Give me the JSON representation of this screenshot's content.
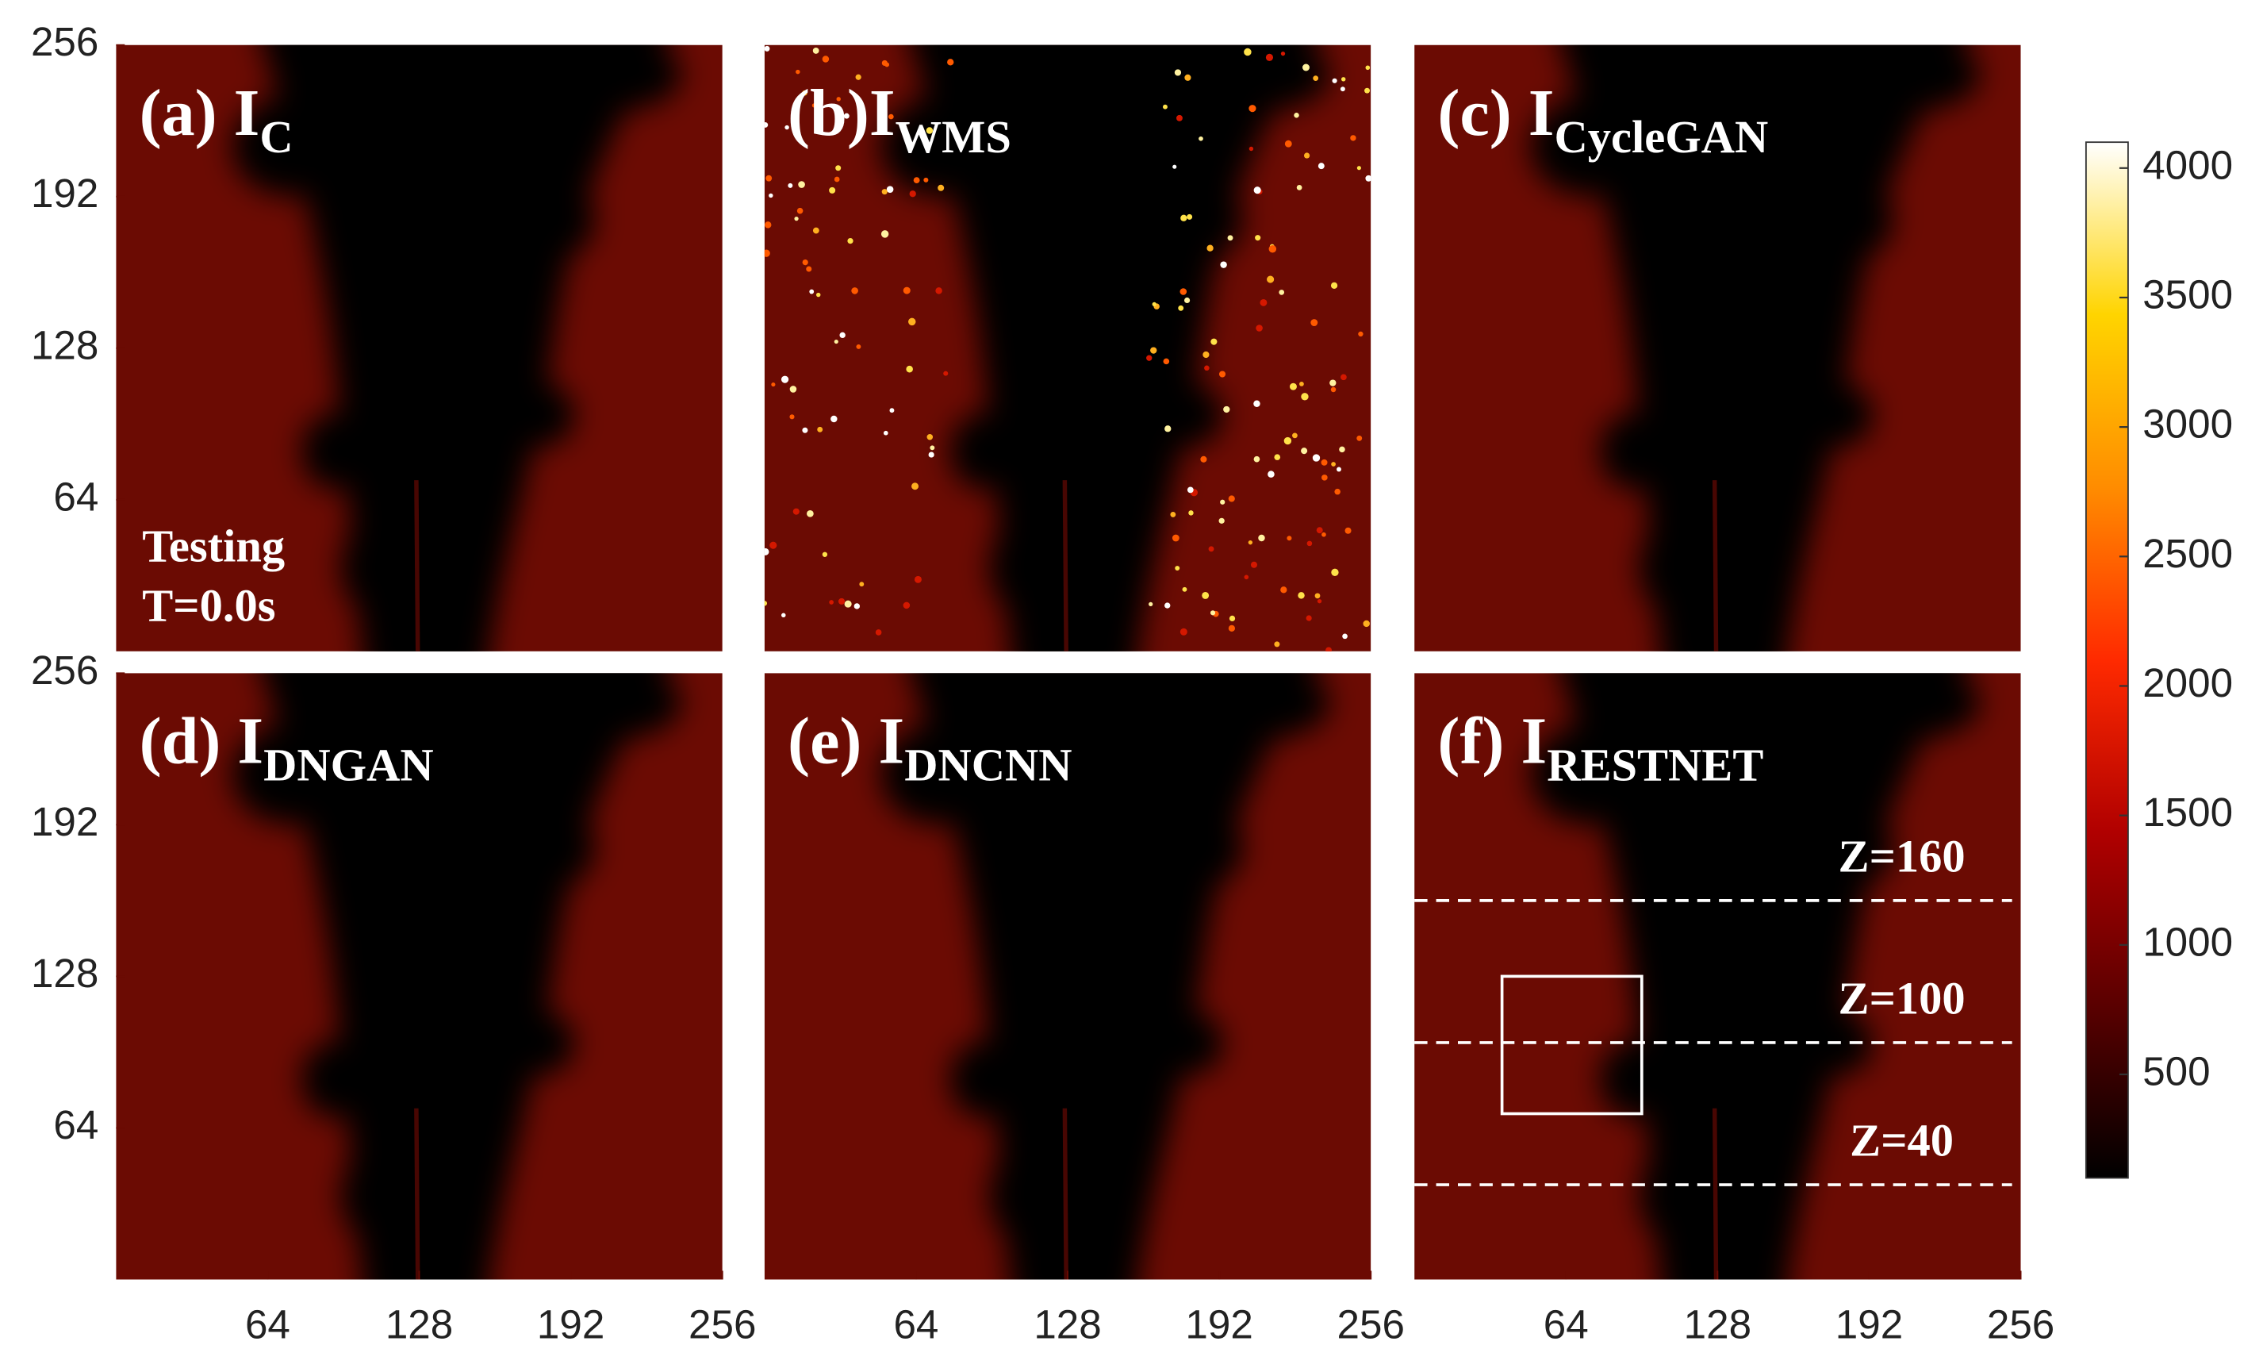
{
  "chart_data": {
    "type": "heatmap",
    "xlim": [
      0,
      256
    ],
    "ylim": [
      0,
      256
    ],
    "xticks": [
      64,
      128,
      192,
      256
    ],
    "yticks": [
      64,
      128,
      192,
      256
    ],
    "background_color": "#6b0b03",
    "panels": [
      {
        "title": "(a) I",
        "title_sub": "C",
        "annotations": [
          "Testing",
          "T=0.0s"
        ]
      },
      {
        "title": "(b)I",
        "title_sub": "WMS",
        "noise": true
      },
      {
        "title": "(c) I",
        "title_sub": "CycleGAN"
      },
      {
        "title": "(d) I",
        "title_sub": "DNGAN"
      },
      {
        "title": "(e) I",
        "title_sub": "DNCNN"
      },
      {
        "title": "(f) I",
        "title_sub": "RESTNET",
        "lines": [
          {
            "label": "Z=160",
            "z": 160
          },
          {
            "label": "Z=100",
            "z": 100
          },
          {
            "label": "Z=40",
            "z": 40
          }
        ],
        "box": {
          "x": [
            37,
            96
          ],
          "y": [
            70,
            128
          ]
        }
      }
    ],
    "colorbar": {
      "lim": [
        100,
        4100
      ],
      "ticks": [
        500,
        1000,
        1500,
        2000,
        2500,
        3000,
        3500,
        4000
      ],
      "colors": [
        "#000000",
        "#5a0000",
        "#b00000",
        "#ff2a00",
        "#ff8c00",
        "#ffd400",
        "#ffffff"
      ]
    }
  }
}
